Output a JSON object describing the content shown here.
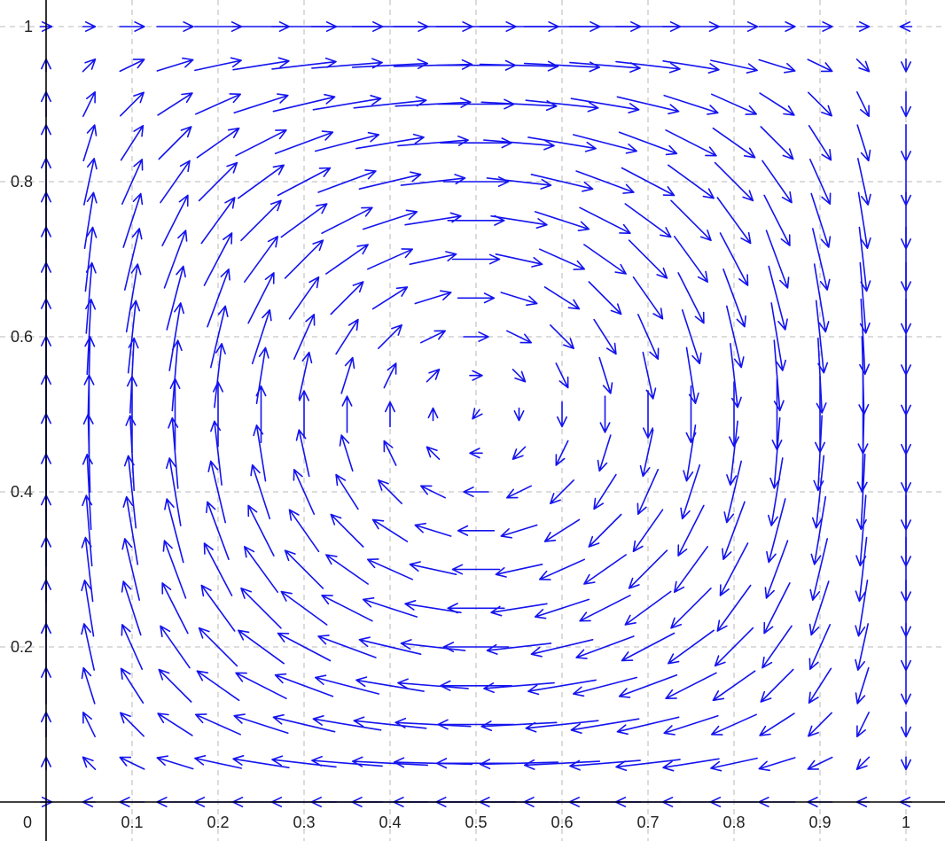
{
  "chart_data": {
    "type": "vector_field",
    "title": "",
    "xlabel": "",
    "ylabel": "",
    "xlim": [
      0,
      1.03
    ],
    "ylim": [
      0,
      1.02
    ],
    "grid": true,
    "origin_label": "0",
    "x_ticks": [
      {
        "value": 0.1,
        "label": "0.1"
      },
      {
        "value": 0.2,
        "label": "0.2"
      },
      {
        "value": 0.3,
        "label": "0.3"
      },
      {
        "value": 0.4,
        "label": "0.4"
      },
      {
        "value": 0.5,
        "label": "0.5"
      },
      {
        "value": 0.6,
        "label": "0.6"
      },
      {
        "value": 0.7,
        "label": "0.7"
      },
      {
        "value": 0.8,
        "label": "0.8"
      },
      {
        "value": 0.9,
        "label": "0.9"
      },
      {
        "value": 1.0,
        "label": "1"
      }
    ],
    "y_ticks": [
      {
        "value": 0.2,
        "label": "0.2"
      },
      {
        "value": 0.4,
        "label": "0.4"
      },
      {
        "value": 0.6,
        "label": "0.6"
      },
      {
        "value": 0.8,
        "label": "0.8"
      },
      {
        "value": 1.0,
        "label": "1"
      }
    ],
    "field": {
      "vx_expression": "-sin(pi*x)*cos(pi*y)",
      "vy_expression": "cos(pi*x)*sin(pi*y)",
      "sample_step": 0.05,
      "x_range": [
        0,
        1
      ],
      "y_range": [
        0,
        1
      ],
      "pattern": "clockwise rotation around (0.5, 0.5)"
    },
    "arrow_color": "#1414ee",
    "grid_color": "#b8b8b8",
    "axis_color": "#000000"
  }
}
